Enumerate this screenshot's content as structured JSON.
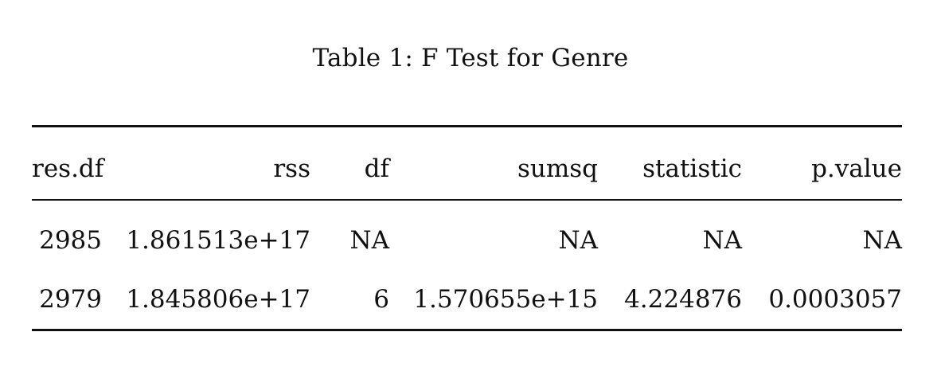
{
  "caption": "Table 1: F Test for Genre",
  "table": {
    "columns": [
      "res.df",
      "rss",
      "df",
      "sumsq",
      "statistic",
      "p.value"
    ],
    "rows": [
      [
        "2985",
        "1.861513e+17",
        "NA",
        "NA",
        "NA",
        "NA"
      ],
      [
        "2979",
        "1.845806e+17",
        "6",
        "1.570655e+15",
        "4.224876",
        "0.0003057"
      ]
    ]
  }
}
